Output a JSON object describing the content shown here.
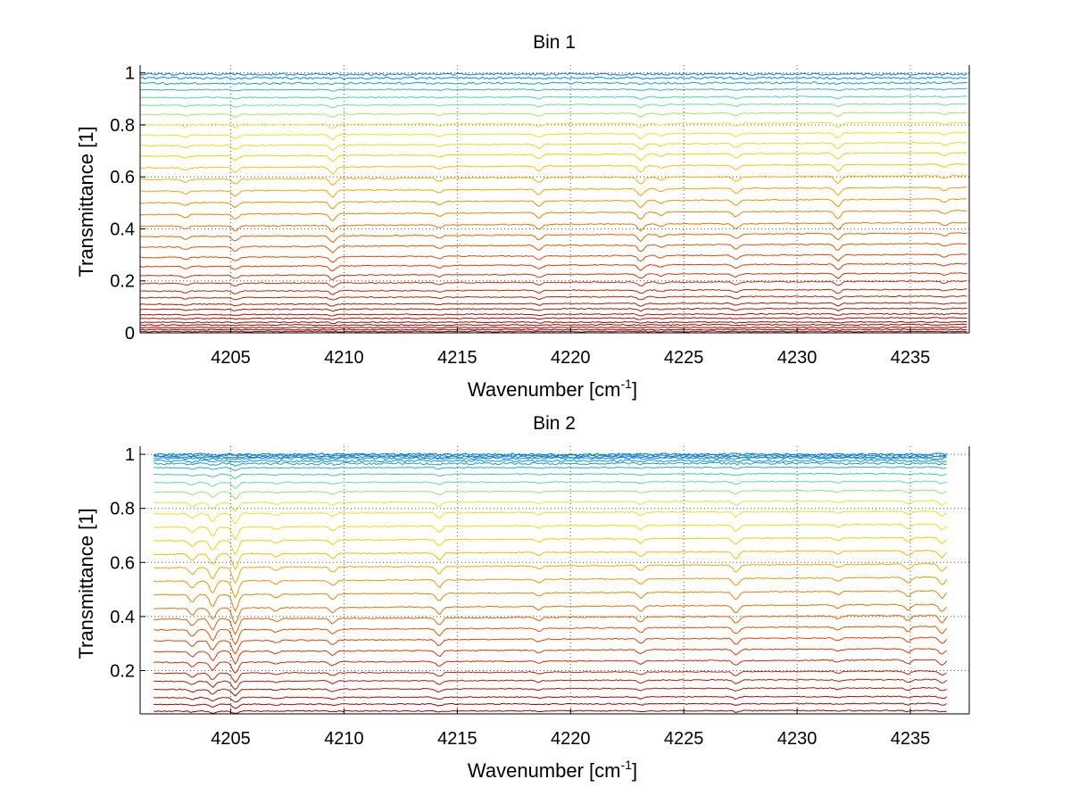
{
  "chart_data": [
    {
      "type": "line",
      "title": "Bin 1",
      "xlabel": "Wavenumber [cm",
      "xlabel_sup": "-1",
      "xlabel_end": "]",
      "ylabel": "Transmittance [1]",
      "xlim": [
        4201,
        4237.6
      ],
      "ylim": [
        0,
        1.03
      ],
      "xticks": [
        "4205",
        "4210",
        "4215",
        "4220",
        "4225",
        "4230",
        "4235"
      ],
      "yticks": [
        "0",
        "0.2",
        "0.4",
        "0.6",
        "0.8",
        "1"
      ],
      "grid": true,
      "line_count": 34,
      "x_start": 4201,
      "x_end": 4237.5,
      "levels": [
        0.005,
        0.012,
        0.02,
        0.03,
        0.04,
        0.055,
        0.07,
        0.09,
        0.11,
        0.135,
        0.16,
        0.19,
        0.22,
        0.255,
        0.29,
        0.33,
        0.37,
        0.41,
        0.455,
        0.5,
        0.545,
        0.59,
        0.635,
        0.68,
        0.72,
        0.76,
        0.8,
        0.84,
        0.875,
        0.905,
        0.935,
        0.96,
        0.98,
        0.995
      ],
      "absorption_lines_cm1": [
        4203.0,
        4205.2,
        4209.5,
        4214.2,
        4218.6,
        4223.1,
        4224.0,
        4227.3,
        4231.8,
        4236.5
      ]
    },
    {
      "type": "line",
      "title": "Bin 2",
      "xlabel": "Wavenumber [cm",
      "xlabel_sup": "-1",
      "xlabel_end": "]",
      "ylabel": "Transmittance [1]",
      "xlim": [
        4201,
        4237.6
      ],
      "ylim": [
        0.04,
        1.03
      ],
      "xticks": [
        "4205",
        "4210",
        "4215",
        "4220",
        "4225",
        "4230",
        "4235"
      ],
      "yticks": [
        "0.2",
        "0.4",
        "0.6",
        "0.8",
        "1"
      ],
      "grid": true,
      "line_count": 30,
      "x_start": 4201.6,
      "x_end": 4236.6,
      "levels": [
        0.05,
        0.075,
        0.1,
        0.13,
        0.16,
        0.19,
        0.23,
        0.27,
        0.31,
        0.35,
        0.39,
        0.43,
        0.48,
        0.53,
        0.58,
        0.63,
        0.68,
        0.73,
        0.78,
        0.82,
        0.86,
        0.895,
        0.925,
        0.95,
        0.965,
        0.975,
        0.985,
        0.99,
        0.995,
        1.0
      ],
      "absorption_lines_cm1": [
        4203.3,
        4204.2,
        4205.2,
        4207.0,
        4209.5,
        4214.2,
        4218.6,
        4223.1,
        4227.3,
        4231.8,
        4234.9,
        4236.4
      ]
    }
  ]
}
